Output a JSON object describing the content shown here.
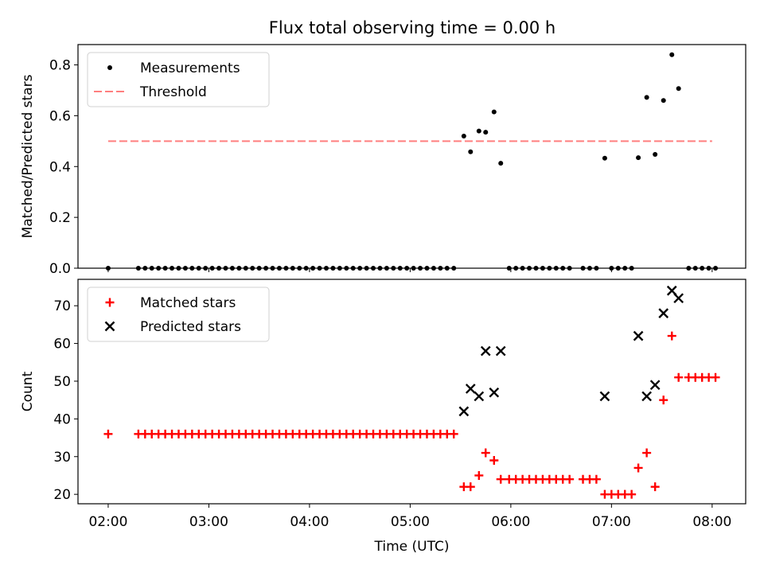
{
  "title": "Flux total observing time = 0.00 h",
  "chart_data": [
    {
      "type": "scatter",
      "title": "Flux total observing time = 0.00 h",
      "ylabel": "Matched/Predicted stars",
      "xlabel": "",
      "xlim": [
        "01:42",
        "08:20"
      ],
      "ylim": [
        0,
        0.88
      ],
      "yticks": [
        0.0,
        0.2,
        0.4,
        0.6,
        0.8
      ],
      "ytick_labels": [
        "0.0",
        "0.2",
        "0.4",
        "0.6",
        "0.8"
      ],
      "legend": "upper-left",
      "threshold": {
        "name": "Threshold",
        "value": 0.5,
        "x_start": "02:00",
        "x_end": "08:00",
        "color": "#ff7f7f"
      },
      "series": [
        {
          "name": "Measurements",
          "color": "#000000",
          "marker": "dot",
          "points": [
            [
              "02:00",
              0
            ],
            [
              "02:18",
              0
            ],
            [
              "02:22",
              0
            ],
            [
              "02:26",
              0
            ],
            [
              "02:30",
              0
            ],
            [
              "02:34",
              0
            ],
            [
              "02:38",
              0
            ],
            [
              "02:42",
              0
            ],
            [
              "02:46",
              0
            ],
            [
              "02:50",
              0
            ],
            [
              "02:54",
              0
            ],
            [
              "02:58",
              0
            ],
            [
              "03:02",
              0
            ],
            [
              "03:06",
              0
            ],
            [
              "03:10",
              0
            ],
            [
              "03:14",
              0
            ],
            [
              "03:18",
              0
            ],
            [
              "03:22",
              0
            ],
            [
              "03:26",
              0
            ],
            [
              "03:30",
              0
            ],
            [
              "03:34",
              0
            ],
            [
              "03:38",
              0
            ],
            [
              "03:42",
              0
            ],
            [
              "03:46",
              0
            ],
            [
              "03:50",
              0
            ],
            [
              "03:54",
              0
            ],
            [
              "03:58",
              0
            ],
            [
              "04:02",
              0
            ],
            [
              "04:06",
              0
            ],
            [
              "04:10",
              0
            ],
            [
              "04:14",
              0
            ],
            [
              "04:18",
              0
            ],
            [
              "04:22",
              0
            ],
            [
              "04:26",
              0
            ],
            [
              "04:30",
              0
            ],
            [
              "04:34",
              0
            ],
            [
              "04:38",
              0
            ],
            [
              "04:42",
              0
            ],
            [
              "04:46",
              0
            ],
            [
              "04:50",
              0
            ],
            [
              "04:54",
              0
            ],
            [
              "04:58",
              0
            ],
            [
              "05:02",
              0
            ],
            [
              "05:06",
              0
            ],
            [
              "05:10",
              0
            ],
            [
              "05:14",
              0
            ],
            [
              "05:18",
              0
            ],
            [
              "05:22",
              0
            ],
            [
              "05:26",
              0
            ],
            [
              "05:32",
              0.52
            ],
            [
              "05:36",
              0.458
            ],
            [
              "05:41",
              0.54
            ],
            [
              "05:45",
              0.535
            ],
            [
              "05:50",
              0.615
            ],
            [
              "05:54",
              0.413
            ],
            [
              "05:59",
              0
            ],
            [
              "06:03",
              0
            ],
            [
              "06:07",
              0
            ],
            [
              "06:11",
              0
            ],
            [
              "06:15",
              0
            ],
            [
              "06:19",
              0
            ],
            [
              "06:23",
              0
            ],
            [
              "06:27",
              0
            ],
            [
              "06:31",
              0
            ],
            [
              "06:35",
              0
            ],
            [
              "06:43",
              0
            ],
            [
              "06:47",
              0
            ],
            [
              "06:51",
              0
            ],
            [
              "06:56",
              0.433
            ],
            [
              "07:00",
              0
            ],
            [
              "07:04",
              0
            ],
            [
              "07:08",
              0
            ],
            [
              "07:12",
              0
            ],
            [
              "07:16",
              0.435
            ],
            [
              "07:21",
              0.672
            ],
            [
              "07:26",
              0.448
            ],
            [
              "07:31",
              0.66
            ],
            [
              "07:36",
              0.84
            ],
            [
              "07:40",
              0.707
            ],
            [
              "07:46",
              0
            ],
            [
              "07:50",
              0
            ],
            [
              "07:54",
              0
            ],
            [
              "07:58",
              0
            ],
            [
              "08:02",
              0
            ]
          ]
        }
      ]
    },
    {
      "type": "scatter",
      "title": "",
      "xlabel": "Time (UTC)",
      "ylabel": "Count",
      "xlim": [
        "01:42",
        "08:20"
      ],
      "ylim": [
        17.5,
        77
      ],
      "yticks": [
        20,
        30,
        40,
        50,
        60,
        70
      ],
      "ytick_labels": [
        "20",
        "30",
        "40",
        "50",
        "60",
        "70"
      ],
      "xticks": [
        "02:00",
        "03:00",
        "04:00",
        "05:00",
        "06:00",
        "07:00",
        "08:00"
      ],
      "xtick_labels": [
        "02:00",
        "03:00",
        "04:00",
        "05:00",
        "06:00",
        "07:00",
        "08:00"
      ],
      "legend": "upper-left",
      "series": [
        {
          "name": "Matched stars",
          "color": "#ff0000",
          "marker": "plus",
          "points": [
            [
              "02:00",
              36
            ],
            [
              "02:18",
              36
            ],
            [
              "02:22",
              36
            ],
            [
              "02:26",
              36
            ],
            [
              "02:30",
              36
            ],
            [
              "02:34",
              36
            ],
            [
              "02:38",
              36
            ],
            [
              "02:42",
              36
            ],
            [
              "02:46",
              36
            ],
            [
              "02:50",
              36
            ],
            [
              "02:54",
              36
            ],
            [
              "02:58",
              36
            ],
            [
              "03:02",
              36
            ],
            [
              "03:06",
              36
            ],
            [
              "03:10",
              36
            ],
            [
              "03:14",
              36
            ],
            [
              "03:18",
              36
            ],
            [
              "03:22",
              36
            ],
            [
              "03:26",
              36
            ],
            [
              "03:30",
              36
            ],
            [
              "03:34",
              36
            ],
            [
              "03:38",
              36
            ],
            [
              "03:42",
              36
            ],
            [
              "03:46",
              36
            ],
            [
              "03:50",
              36
            ],
            [
              "03:54",
              36
            ],
            [
              "03:58",
              36
            ],
            [
              "04:02",
              36
            ],
            [
              "04:06",
              36
            ],
            [
              "04:10",
              36
            ],
            [
              "04:14",
              36
            ],
            [
              "04:18",
              36
            ],
            [
              "04:22",
              36
            ],
            [
              "04:26",
              36
            ],
            [
              "04:30",
              36
            ],
            [
              "04:34",
              36
            ],
            [
              "04:38",
              36
            ],
            [
              "04:42",
              36
            ],
            [
              "04:46",
              36
            ],
            [
              "04:50",
              36
            ],
            [
              "04:54",
              36
            ],
            [
              "04:58",
              36
            ],
            [
              "05:02",
              36
            ],
            [
              "05:06",
              36
            ],
            [
              "05:10",
              36
            ],
            [
              "05:14",
              36
            ],
            [
              "05:18",
              36
            ],
            [
              "05:22",
              36
            ],
            [
              "05:26",
              36
            ],
            [
              "05:32",
              22
            ],
            [
              "05:36",
              22
            ],
            [
              "05:41",
              25
            ],
            [
              "05:45",
              31
            ],
            [
              "05:50",
              29
            ],
            [
              "05:54",
              24
            ],
            [
              "05:59",
              24
            ],
            [
              "06:03",
              24
            ],
            [
              "06:07",
              24
            ],
            [
              "06:11",
              24
            ],
            [
              "06:15",
              24
            ],
            [
              "06:19",
              24
            ],
            [
              "06:23",
              24
            ],
            [
              "06:27",
              24
            ],
            [
              "06:31",
              24
            ],
            [
              "06:35",
              24
            ],
            [
              "06:43",
              24
            ],
            [
              "06:47",
              24
            ],
            [
              "06:51",
              24
            ],
            [
              "06:56",
              20
            ],
            [
              "07:00",
              20
            ],
            [
              "07:04",
              20
            ],
            [
              "07:08",
              20
            ],
            [
              "07:12",
              20
            ],
            [
              "07:16",
              27
            ],
            [
              "07:21",
              31
            ],
            [
              "07:26",
              22
            ],
            [
              "07:31",
              45
            ],
            [
              "07:36",
              62
            ],
            [
              "07:40",
              51
            ],
            [
              "07:46",
              51
            ],
            [
              "07:50",
              51
            ],
            [
              "07:54",
              51
            ],
            [
              "07:58",
              51
            ],
            [
              "08:02",
              51
            ]
          ]
        },
        {
          "name": "Predicted stars",
          "color": "#000000",
          "marker": "x",
          "points": [
            [
              "05:32",
              42
            ],
            [
              "05:36",
              48
            ],
            [
              "05:41",
              46
            ],
            [
              "05:45",
              58
            ],
            [
              "05:50",
              47
            ],
            [
              "05:54",
              58
            ],
            [
              "06:56",
              46
            ],
            [
              "07:16",
              62
            ],
            [
              "07:21",
              46
            ],
            [
              "07:26",
              49
            ],
            [
              "07:31",
              68
            ],
            [
              "07:36",
              74
            ],
            [
              "07:40",
              72
            ]
          ]
        }
      ]
    }
  ]
}
